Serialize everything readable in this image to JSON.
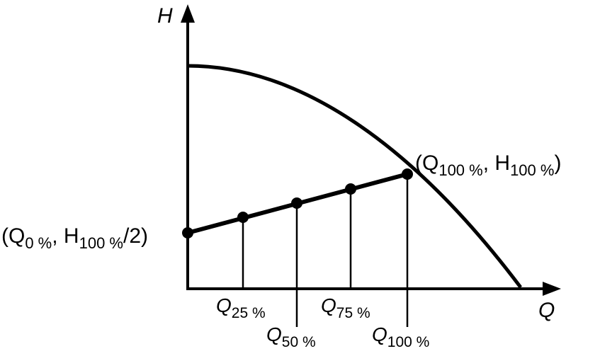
{
  "axes": {
    "y_label": "H",
    "x_label": "Q"
  },
  "flow_labels": [
    {
      "base": "Q",
      "sub": "25 %"
    },
    {
      "base": "Q",
      "sub": "50 %"
    },
    {
      "base": "Q",
      "sub": "75 %"
    },
    {
      "base": "Q",
      "sub": "100 %"
    }
  ],
  "point_labels": {
    "start": {
      "open": "(Q",
      "sub1": "0 %",
      "mid": ", H",
      "sub2": "100 %",
      "close": "/2)"
    },
    "end": {
      "open": "(Q",
      "sub1": "100 %",
      "mid": ", H",
      "sub2": "100 %",
      "close": ")"
    }
  },
  "colors": {
    "ink": "#000000",
    "background": "#ffffff"
  }
}
